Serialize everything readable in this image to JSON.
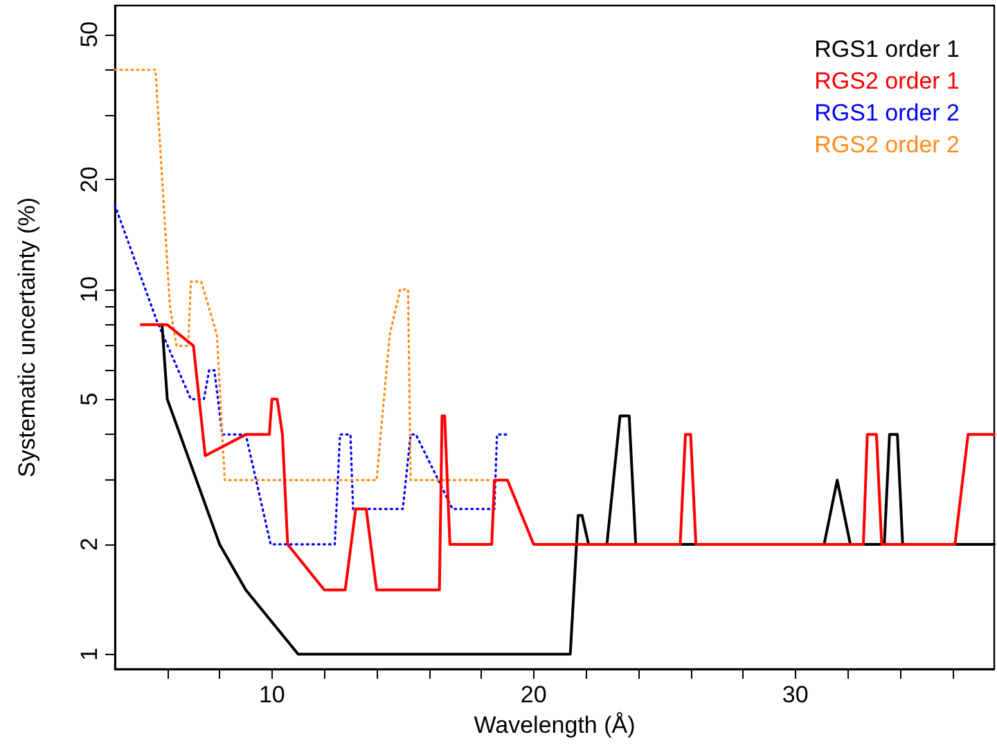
{
  "chart_data": {
    "type": "line",
    "xlabel": "Wavelength (Å)",
    "ylabel": "Systematic uncertainty (%)",
    "log": "y",
    "grid": false,
    "legend": "top right",
    "marker": "none",
    "xlim": [
      4,
      37.6
    ],
    "xticks": [
      {
        "value": 6,
        "label": null
      },
      {
        "value": 8,
        "label": null
      },
      10,
      {
        "value": 12,
        "label": null
      },
      {
        "value": 14,
        "label": null
      },
      {
        "value": 16,
        "label": null
      },
      {
        "value": 18,
        "label": null
      },
      20,
      {
        "value": 22,
        "label": null
      },
      {
        "value": 24,
        "label": null
      },
      {
        "value": 26,
        "label": null
      },
      {
        "value": 28,
        "label": null
      },
      30,
      {
        "value": 32,
        "label": null
      },
      {
        "value": 34,
        "label": null
      },
      {
        "value": 36,
        "label": null
      }
    ],
    "ylim": [
      0.91,
      60
    ],
    "yticks": [
      1,
      2,
      {
        "value": 3,
        "label": null
      },
      {
        "value": 4,
        "label": null
      },
      5,
      {
        "value": 6,
        "label": null
      },
      {
        "value": 7,
        "label": null
      },
      {
        "value": 8,
        "label": null
      },
      {
        "value": 9,
        "label": null
      },
      10,
      20,
      {
        "value": 30,
        "label": null
      },
      {
        "value": 40,
        "label": null
      },
      50
    ],
    "series": [
      {
        "name": "RGS1 order 1",
        "color": "#000000",
        "line_style": "solid",
        "x": [
          5.8,
          6,
          8,
          9,
          11,
          21.4,
          21.7,
          21.85,
          22.1,
          22.8,
          23.3,
          23.65,
          23.9,
          31.1,
          31.6,
          32.1,
          33.4,
          33.6,
          33.9,
          34.1,
          37.6
        ],
        "values": [
          8,
          5,
          2,
          1.5,
          1,
          1,
          2.4,
          2.4,
          2,
          2,
          4.5,
          4.5,
          2,
          2,
          3,
          2,
          2,
          4,
          4,
          2,
          2
        ]
      },
      {
        "name": "RGS2 order 1",
        "color": "#ff0000",
        "line_style": "solid",
        "x": [
          5,
          6,
          7,
          7.45,
          9,
          9.9,
          10,
          10.2,
          10.4,
          10.6,
          12,
          12.8,
          13.2,
          13.6,
          14,
          16.4,
          16.5,
          16.6,
          16.8,
          18.4,
          18.5,
          19,
          20,
          25.6,
          25.8,
          26,
          26.2,
          32.6,
          32.75,
          33.1,
          33.3,
          36.1,
          36.6,
          37.6
        ],
        "values": [
          8,
          8,
          7,
          3.5,
          4,
          4,
          5,
          5,
          4,
          2,
          1.5,
          1.5,
          2.5,
          2.5,
          1.5,
          1.5,
          4.5,
          4.5,
          2,
          2,
          3,
          3,
          2,
          2,
          4,
          4,
          2,
          2,
          4,
          4,
          2,
          2,
          4,
          4
        ]
      },
      {
        "name": "RGS1 order 2",
        "color": "#0000ff",
        "line_style": "dotted",
        "x": [
          4,
          5.6,
          6.9,
          7.4,
          7.6,
          7.8,
          8.1,
          9,
          9.95,
          12.4,
          12.6,
          13,
          13.1,
          15,
          15.3,
          15.5,
          16.9,
          18.5,
          18.6,
          19
        ],
        "values": [
          17,
          8.2,
          5,
          5,
          6,
          6,
          4,
          4,
          2,
          2,
          4,
          4,
          2.5,
          2.5,
          4,
          4,
          2.5,
          2.5,
          4,
          4
        ]
      },
      {
        "name": "RGS2 order 2",
        "color": "#ff8c1a",
        "line_style": "dotted",
        "x": [
          4,
          5.55,
          6.1,
          6.35,
          6.8,
          6.9,
          7.3,
          7.9,
          8.1,
          8.2,
          14,
          14.5,
          14.9,
          15.2,
          15.3,
          18.3
        ],
        "values": [
          40,
          40,
          9,
          7,
          7,
          10.5,
          10.5,
          7.5,
          4,
          3,
          3,
          7.5,
          10,
          10,
          3,
          3
        ]
      }
    ]
  }
}
